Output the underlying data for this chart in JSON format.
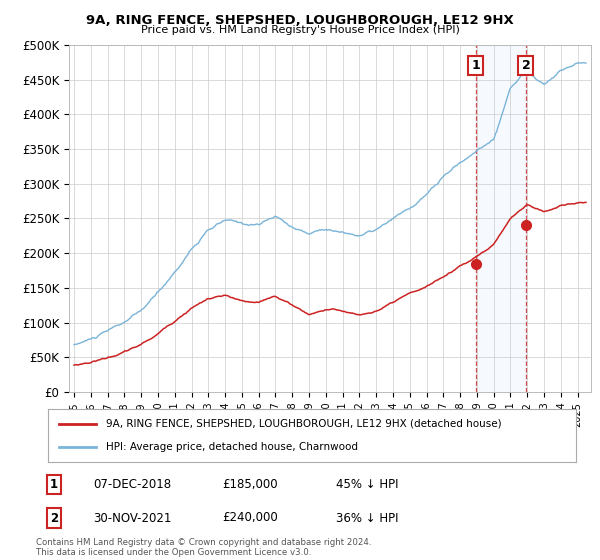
{
  "title": "9A, RING FENCE, SHEPSHED, LOUGHBOROUGH, LE12 9HX",
  "subtitle": "Price paid vs. HM Land Registry's House Price Index (HPI)",
  "ylabel_ticks": [
    "£0",
    "£50K",
    "£100K",
    "£150K",
    "£200K",
    "£250K",
    "£300K",
    "£350K",
    "£400K",
    "£450K",
    "£500K"
  ],
  "ytick_values": [
    0,
    50000,
    100000,
    150000,
    200000,
    250000,
    300000,
    350000,
    400000,
    450000,
    500000
  ],
  "ylim": [
    0,
    500000
  ],
  "xlim_start": 1994.7,
  "xlim_end": 2025.8,
  "hpi_color": "#7ab4d8",
  "price_color": "#cc2222",
  "sale1_date": "07-DEC-2018",
  "sale1_price": 185000,
  "sale1_label": "45% ↓ HPI",
  "sale2_date": "30-NOV-2021",
  "sale2_price": 240000,
  "sale2_label": "36% ↓ HPI",
  "sale1_x": 2018.92,
  "sale2_x": 2021.92,
  "legend_label1": "9A, RING FENCE, SHEPSHED, LOUGHBOROUGH, LE12 9HX (detached house)",
  "legend_label2": "HPI: Average price, detached house, Charnwood",
  "footnote": "Contains HM Land Registry data © Crown copyright and database right 2024.\nThis data is licensed under the Open Government Licence v3.0.",
  "bg_color": "#ffffff",
  "grid_color": "#cccccc",
  "shade_color": "#ddeeff",
  "hpi_data": {
    "years": [
      1995,
      1996,
      1997,
      1998,
      1999,
      2000,
      2001,
      2002,
      2003,
      2004,
      2005,
      2006,
      2007,
      2008,
      2009,
      2010,
      2011,
      2012,
      2013,
      2014,
      2015,
      2016,
      2017,
      2018,
      2019,
      2020,
      2021,
      2022,
      2023,
      2024,
      2025
    ],
    "values": [
      75000,
      83000,
      93000,
      105000,
      120000,
      145000,
      175000,
      210000,
      235000,
      248000,
      242000,
      242000,
      252000,
      238000,
      228000,
      238000,
      232000,
      228000,
      235000,
      248000,
      262000,
      280000,
      305000,
      325000,
      342000,
      360000,
      435000,
      458000,
      440000,
      460000,
      472000
    ]
  },
  "price_data": {
    "years": [
      1995,
      1996,
      1997,
      1998,
      1999,
      2000,
      2001,
      2002,
      2003,
      2004,
      2005,
      2006,
      2007,
      2008,
      2009,
      2010,
      2011,
      2012,
      2013,
      2014,
      2015,
      2016,
      2017,
      2018,
      2019,
      2020,
      2021,
      2022,
      2023,
      2024,
      2025
    ],
    "values": [
      40000,
      45000,
      52000,
      60000,
      70000,
      85000,
      105000,
      125000,
      138000,
      142000,
      132000,
      128000,
      138000,
      125000,
      112000,
      120000,
      118000,
      112000,
      118000,
      128000,
      138000,
      148000,
      162000,
      178000,
      192000,
      208000,
      248000,
      268000,
      258000,
      268000,
      272000
    ]
  }
}
